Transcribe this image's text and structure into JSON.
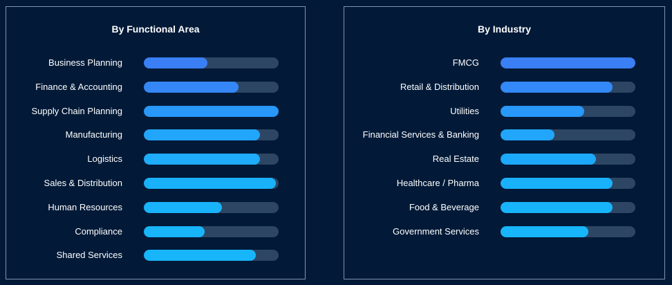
{
  "chart_data": [
    {
      "type": "bar",
      "orientation": "horizontal",
      "title": "By Functional Area",
      "categories": [
        "Business Planning",
        "Finance & Accounting",
        "Supply Chain Planning",
        "Manufacturing",
        "Logistics",
        "Sales & Distribution",
        "Human Resources",
        "Compliance",
        "Shared Services"
      ],
      "values": [
        47,
        70,
        100,
        86,
        86,
        98,
        58,
        45,
        83
      ],
      "xlim": [
        0,
        100
      ],
      "bar_colors": [
        "#3a7ff6",
        "#3587f8",
        "#2898fb",
        "#21a6fb",
        "#1eacfb",
        "#1ab1fb",
        "#19b3fb",
        "#18b5fb",
        "#17b6fb"
      ],
      "track_color": "#2d4663",
      "grid": false,
      "legend": "none"
    },
    {
      "type": "bar",
      "orientation": "horizontal",
      "title": "By Industry",
      "categories": [
        "FMCG",
        "Retail & Distribution",
        "Utilities",
        "Financial Services &  Banking",
        "Real Estate",
        "Healthcare / Pharma",
        "Food & Beverage",
        "Government Services"
      ],
      "values": [
        100,
        83,
        62,
        40,
        71,
        83,
        83,
        65
      ],
      "xlim": [
        0,
        100
      ],
      "bar_colors": [
        "#3a7ff6",
        "#3389f8",
        "#2898fb",
        "#21a6fb",
        "#1ca9fb",
        "#1ab1fb",
        "#18b4fb",
        "#17b6fb"
      ],
      "track_color": "#2d4663",
      "grid": false,
      "legend": "none"
    }
  ],
  "colors": {
    "background": "#021a38",
    "panel_border": "#7f93ad",
    "text": "#ffffff"
  }
}
